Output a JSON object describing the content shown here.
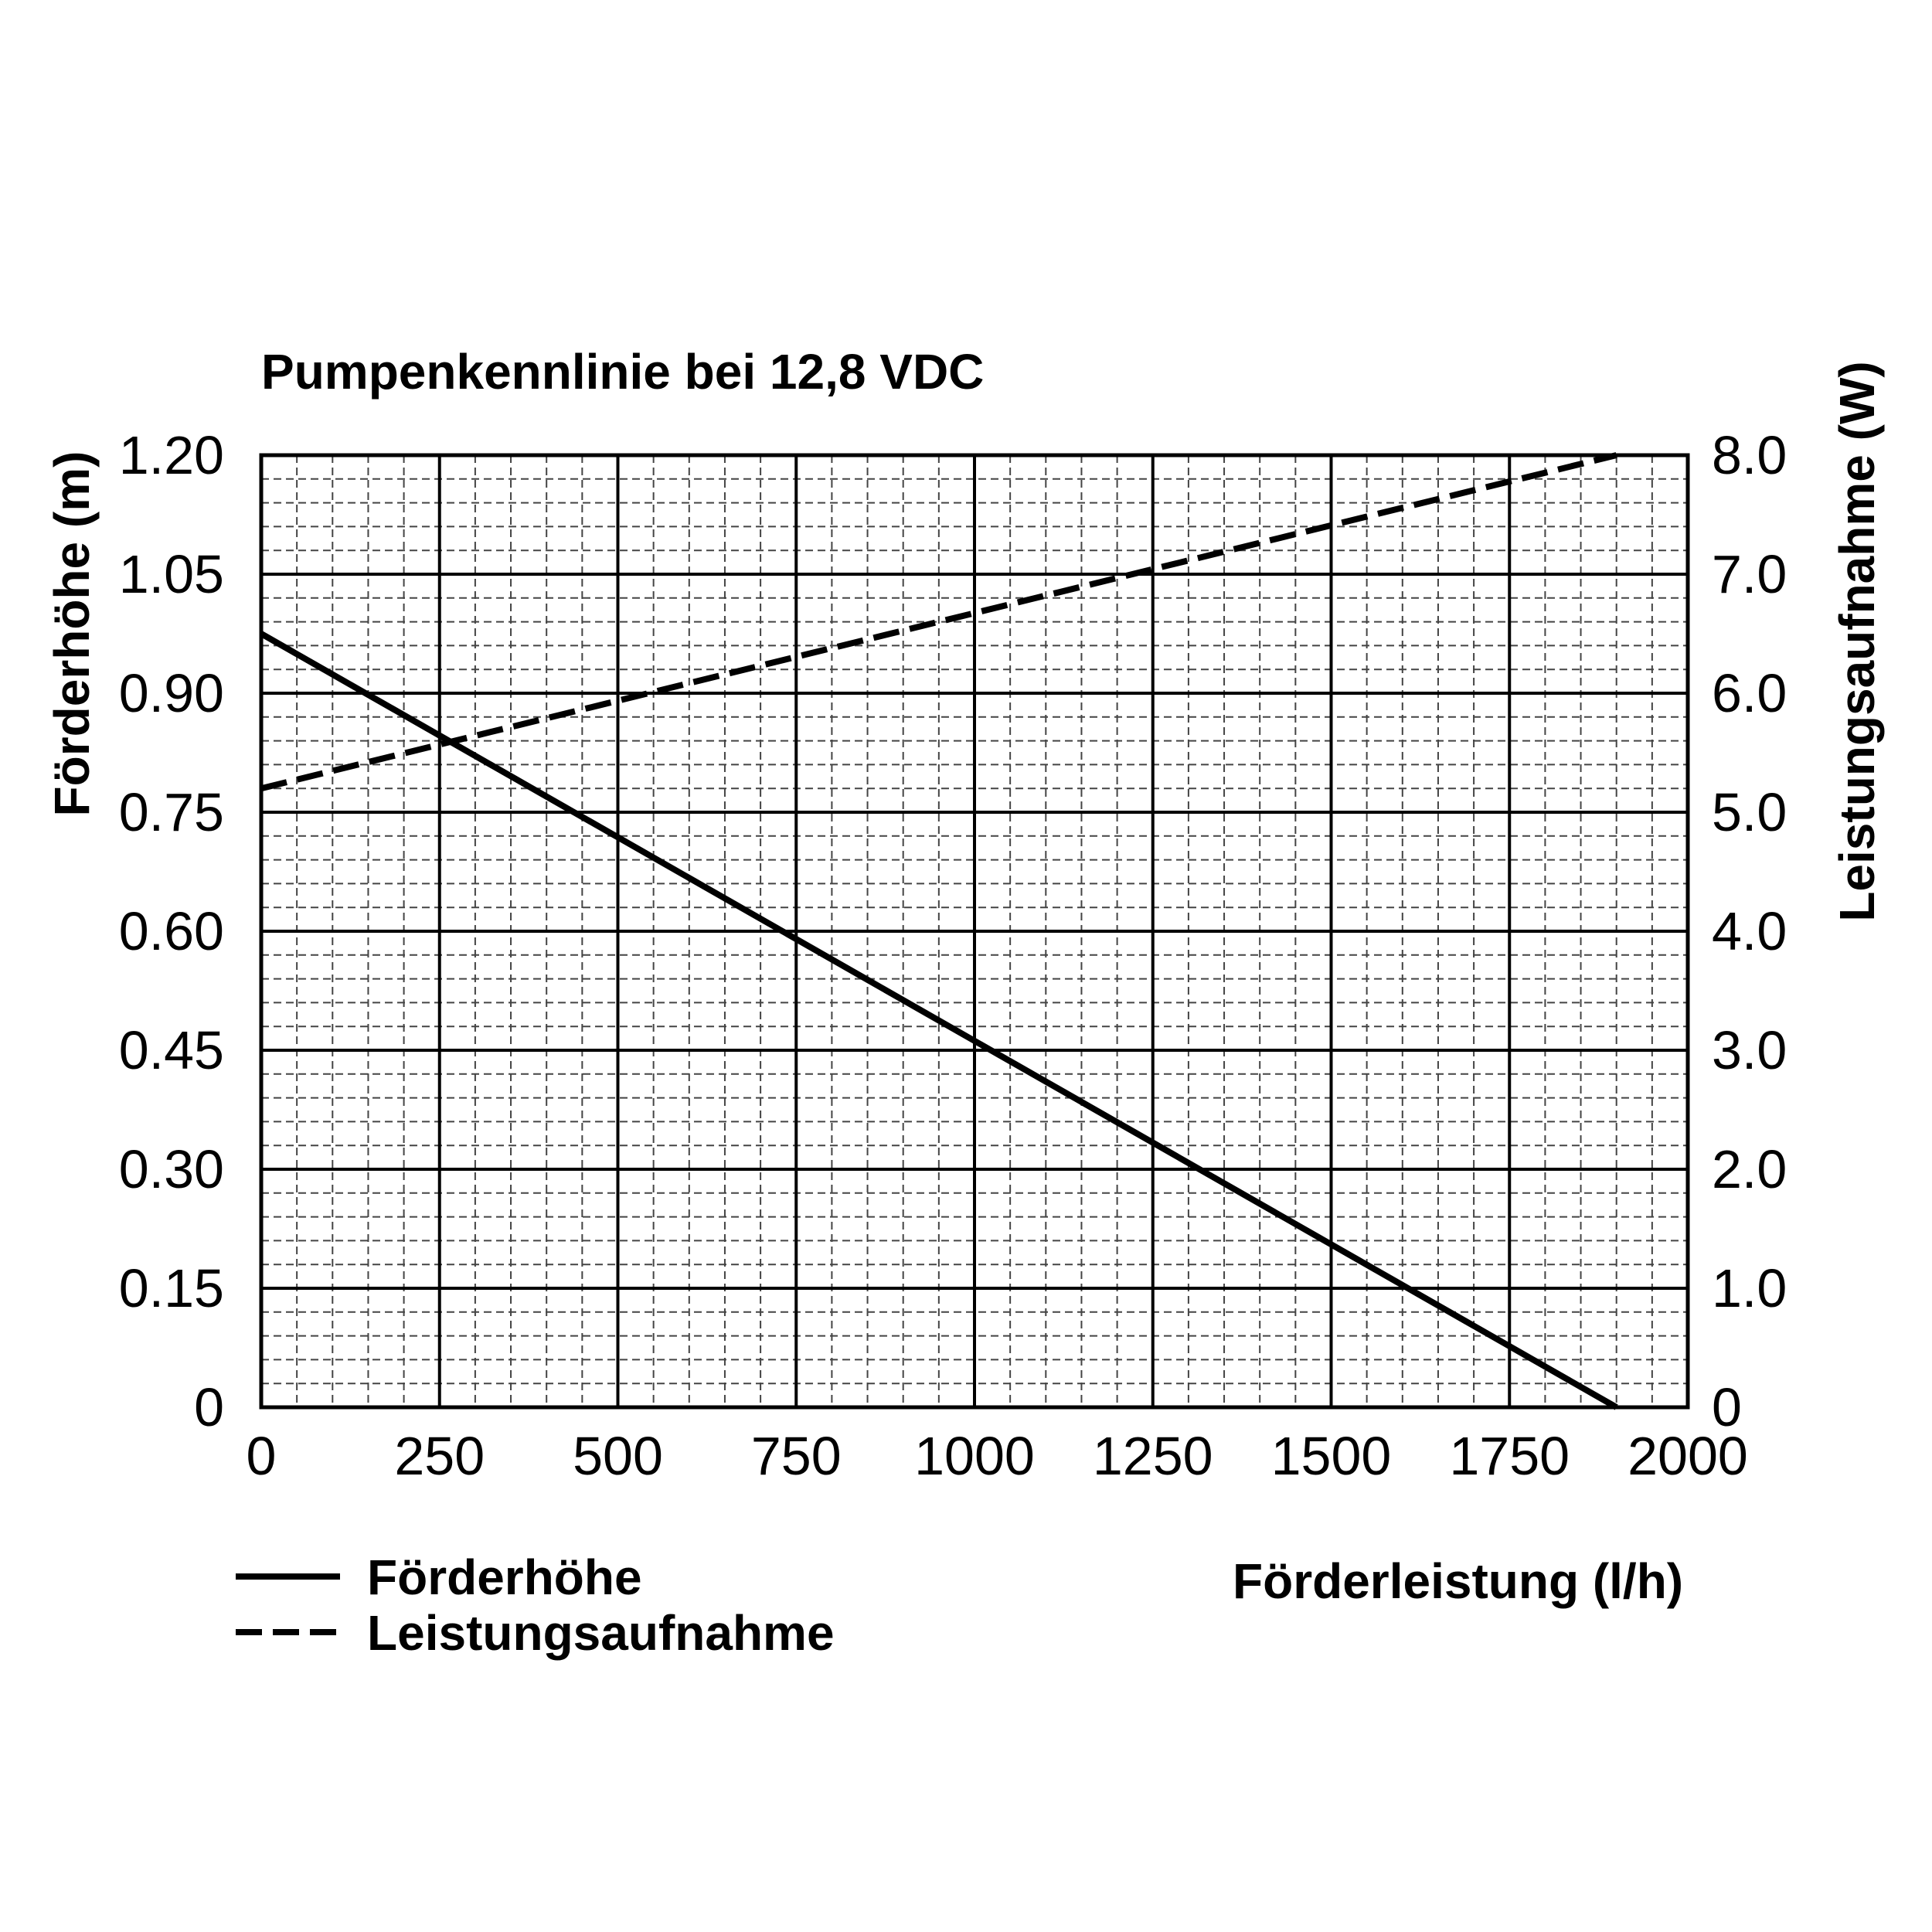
{
  "chart_data": {
    "type": "line",
    "title": "Pumpenkennlinie bei 12,8 VDC",
    "xlabel": "Förderleistung (l/h)",
    "ylabel": "Förderhöhe (m)",
    "y2label": "Leistungsaufnahme (W)",
    "xlim": [
      0,
      2000
    ],
    "ylim": [
      0,
      1.2
    ],
    "y2lim": [
      0,
      8.0
    ],
    "x_ticks": [
      "0",
      "250",
      "500",
      "750",
      "1000",
      "1250",
      "1500",
      "1750",
      "2000"
    ],
    "y_ticks": [
      "0",
      "0.15",
      "0.30",
      "0.45",
      "0.60",
      "0.75",
      "0.90",
      "1.05",
      "1.20"
    ],
    "y2_ticks": [
      "0",
      "1.0",
      "2.0",
      "3.0",
      "4.0",
      "5.0",
      "6.0",
      "7.0",
      "8.0"
    ],
    "grid": true,
    "legend_position": "bottom-left",
    "series": [
      {
        "name": "Förderhöhe",
        "axis": "left",
        "style": "solid",
        "x": [
          0,
          1900
        ],
        "y": [
          0.975,
          0.0
        ]
      },
      {
        "name": "Leistungsaufnahme",
        "axis": "right",
        "style": "dashed",
        "x": [
          0,
          1900
        ],
        "y": [
          5.2,
          8.0
        ]
      }
    ]
  }
}
